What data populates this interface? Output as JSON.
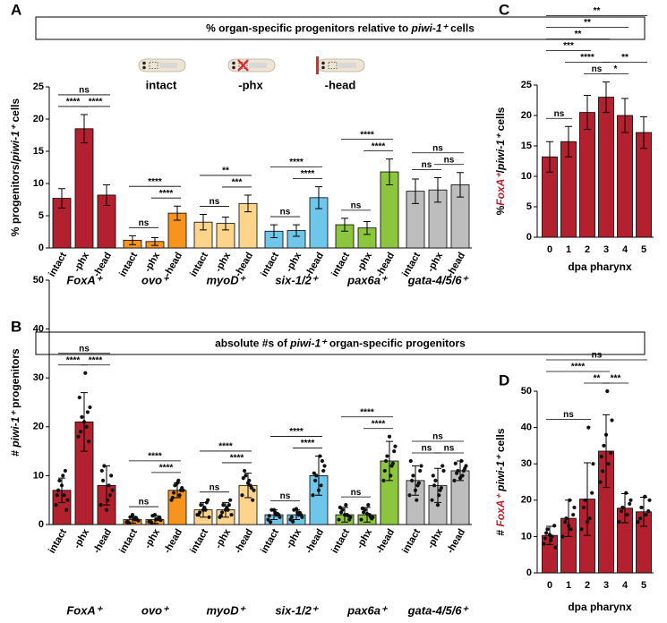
{
  "chart_data": [
    {
      "type": "bar",
      "panel": "A",
      "title": [
        "% organ-specific progenitors relative to ",
        "piwi-1⁺",
        " cells"
      ],
      "legend": [
        {
          "label": "intact",
          "color": "#000000"
        },
        {
          "label": "-phx",
          "color": "#e8242b"
        },
        {
          "label": "-head",
          "color": "#e8242b"
        }
      ],
      "y_label": [
        "% progenitors/",
        "piwi-1⁺",
        " cells"
      ],
      "categories": [
        "intact",
        "-phx",
        "-head"
      ],
      "ylim": [
        0,
        25
      ],
      "yticks": [
        0,
        5,
        10,
        15,
        20,
        25
      ],
      "groups": [
        {
          "name": "FoxA⁺",
          "color": "#b3202e",
          "values": [
            7.7,
            18.5,
            8.2
          ],
          "errors": [
            1.5,
            2.2,
            1.6
          ],
          "significance": [
            {
              "pair": [
                0,
                2
              ],
              "label": "ns"
            },
            {
              "pair": [
                0,
                1
              ],
              "label": "****"
            },
            {
              "pair": [
                1,
                2
              ],
              "label": "****"
            }
          ]
        },
        {
          "name": "ovo⁺",
          "color": "#f7941d",
          "values": [
            1.2,
            1.0,
            5.4
          ],
          "errors": [
            0.7,
            0.6,
            1.1
          ],
          "significance": [
            {
              "pair": [
                0,
                2
              ],
              "label": "****"
            },
            {
              "pair": [
                1,
                2
              ],
              "label": "****"
            },
            {
              "pair": [
                0,
                1
              ],
              "label": "ns"
            }
          ]
        },
        {
          "name": "myoD⁺",
          "color": "#fdd48a",
          "values": [
            4.0,
            3.8,
            6.9
          ],
          "errors": [
            1.2,
            1.0,
            1.3
          ],
          "significance": [
            {
              "pair": [
                0,
                2
              ],
              "label": "**"
            },
            {
              "pair": [
                1,
                2
              ],
              "label": "***"
            },
            {
              "pair": [
                0,
                1
              ],
              "label": "ns"
            }
          ]
        },
        {
          "name": "six-1/2⁺",
          "color": "#6ec6ea",
          "values": [
            2.6,
            2.7,
            7.8
          ],
          "errors": [
            1.0,
            0.9,
            1.7
          ],
          "significance": [
            {
              "pair": [
                0,
                2
              ],
              "label": "****"
            },
            {
              "pair": [
                1,
                2
              ],
              "label": "****"
            },
            {
              "pair": [
                0,
                1
              ],
              "label": "ns"
            }
          ]
        },
        {
          "name": "pax6a⁺",
          "color": "#8cc63f",
          "values": [
            3.6,
            3.1,
            11.8
          ],
          "errors": [
            1.0,
            1.0,
            2.0
          ],
          "significance": [
            {
              "pair": [
                0,
                2
              ],
              "label": "****"
            },
            {
              "pair": [
                1,
                2
              ],
              "label": "****"
            },
            {
              "pair": [
                0,
                1
              ],
              "label": "ns"
            }
          ]
        },
        {
          "name": "gata-4/5/6⁺",
          "color": "#bdbdbd",
          "values": [
            8.8,
            9.0,
            9.8
          ],
          "errors": [
            1.9,
            1.9,
            1.9
          ],
          "significance": [
            {
              "pair": [
                0,
                2
              ],
              "label": "ns"
            },
            {
              "pair": [
                0,
                1
              ],
              "label": "ns"
            },
            {
              "pair": [
                1,
                2
              ],
              "label": "ns"
            }
          ]
        }
      ]
    },
    {
      "type": "bar",
      "panel": "B",
      "title": [
        "absolute #s of ",
        "piwi-1⁺",
        " organ-specific progenitors"
      ],
      "y_label": [
        "# ",
        "piwi-1⁺",
        " progenitors"
      ],
      "categories": [
        "intact",
        "-phx",
        "-head"
      ],
      "ylim": [
        0,
        50
      ],
      "yticks": [
        0,
        10,
        20,
        30,
        40,
        50
      ],
      "groups": [
        {
          "name": "FoxA⁺",
          "color": "#b3202e",
          "values": [
            7,
            21,
            8
          ],
          "errors": [
            2.5,
            6,
            4
          ],
          "points": [
            [
              4,
              6,
              9,
              5,
              10,
              7,
              3,
              8,
              6,
              11
            ],
            [
              18,
              20,
              22,
              24,
              31,
              19,
              17,
              21,
              26,
              23
            ],
            [
              4,
              8,
              12,
              7,
              5,
              9,
              10,
              3,
              11,
              6
            ]
          ],
          "significance": [
            {
              "pair": [
                0,
                2
              ],
              "label": "ns"
            },
            {
              "pair": [
                0,
                1
              ],
              "label": "****"
            },
            {
              "pair": [
                1,
                2
              ],
              "label": "****"
            }
          ]
        },
        {
          "name": "ovo⁺",
          "color": "#f7941d",
          "values": [
            1,
            1,
            7
          ],
          "errors": [
            0.7,
            0.8,
            1.5
          ],
          "points": [
            [
              0.5,
              1,
              1.5,
              0.8,
              1.2,
              0.3,
              1,
              2,
              0.6,
              1.4
            ],
            [
              0.6,
              1.2,
              1.8,
              0.9,
              1,
              0.4,
              1.5,
              2,
              0.7,
              1.1
            ],
            [
              5,
              6,
              8,
              7,
              9,
              6.5,
              7.5,
              8.5,
              5.5,
              7
            ]
          ],
          "significance": [
            {
              "pair": [
                0,
                2
              ],
              "label": "****"
            },
            {
              "pair": [
                1,
                2
              ],
              "label": "****"
            },
            {
              "pair": [
                0,
                1
              ],
              "label": "ns"
            }
          ]
        },
        {
          "name": "myoD⁺",
          "color": "#fdd48a",
          "values": [
            3,
            3,
            8
          ],
          "errors": [
            1.5,
            1.5,
            2.5
          ],
          "points": [
            [
              2,
              3,
              4,
              1.5,
              3.5,
              2.5,
              5,
              3,
              2,
              4.5
            ],
            [
              1.5,
              3,
              4,
              2,
              3.5,
              2.5,
              5,
              3,
              1.8,
              4
            ],
            [
              6,
              8,
              10,
              7,
              9,
              11,
              5,
              8.5,
              9.5,
              7.5
            ]
          ],
          "significance": [
            {
              "pair": [
                0,
                2
              ],
              "label": "****"
            },
            {
              "pair": [
                1,
                2
              ],
              "label": "****"
            },
            {
              "pair": [
                0,
                1
              ],
              "label": "ns"
            }
          ]
        },
        {
          "name": "six-1/2⁺",
          "color": "#6ec6ea",
          "values": [
            2,
            2,
            10
          ],
          "errors": [
            1,
            1,
            4
          ],
          "points": [
            [
              1,
              2,
              3,
              1.5,
              2.5,
              0.5,
              2,
              3,
              1.8,
              2.2
            ],
            [
              1,
              2,
              3,
              1.5,
              2.5,
              0.6,
              2,
              3.2,
              1.5,
              2.4
            ],
            [
              6,
              8,
              10,
              12,
              14,
              9,
              11,
              7,
              10.5,
              13
            ]
          ],
          "significance": [
            {
              "pair": [
                0,
                2
              ],
              "label": "****"
            },
            {
              "pair": [
                1,
                2
              ],
              "label": "****"
            },
            {
              "pair": [
                0,
                1
              ],
              "label": "ns"
            }
          ]
        },
        {
          "name": "pax6a⁺",
          "color": "#8cc63f",
          "values": [
            2,
            2,
            13
          ],
          "errors": [
            1.5,
            1.5,
            4
          ],
          "points": [
            [
              1,
              2,
              3,
              1.5,
              4,
              2.5,
              1,
              2,
              3.5,
              1.8
            ],
            [
              1,
              2,
              3,
              1.5,
              4,
              2.5,
              1.2,
              2.2,
              3.3,
              1.6
            ],
            [
              9,
              12,
              14,
              16,
              10,
              13,
              15,
              18,
              11,
              12.5
            ]
          ],
          "significance": [
            {
              "pair": [
                0,
                2
              ],
              "label": "****"
            },
            {
              "pair": [
                1,
                2
              ],
              "label": "****"
            },
            {
              "pair": [
                0,
                1
              ],
              "label": "ns"
            }
          ]
        },
        {
          "name": "gata-4/5/6⁺",
          "color": "#bdbdbd",
          "values": [
            9,
            8,
            11
          ],
          "errors": [
            3,
            3.5,
            2
          ],
          "points": [
            [
              6,
              8,
              10,
              12,
              5,
              9,
              11,
              7,
              13,
              8.5
            ],
            [
              5,
              7,
              9,
              11,
              6,
              8,
              12,
              4,
              10,
              7.5
            ],
            [
              9,
              10,
              11,
              12,
              13,
              10.5,
              11.5,
              9.5,
              12.5,
              11
            ]
          ],
          "significance": [
            {
              "pair": [
                0,
                2
              ],
              "label": "ns"
            },
            {
              "pair": [
                0,
                1
              ],
              "label": "ns"
            },
            {
              "pair": [
                1,
                2
              ],
              "label": "ns"
            }
          ]
        }
      ]
    },
    {
      "type": "bar",
      "panel": "C",
      "y_label": [
        "%",
        "FoxA⁺",
        "/",
        "piwi-1⁺",
        " cells"
      ],
      "x_label": "dpa pharynx",
      "categories": [
        "0",
        "1",
        "2",
        "3",
        "4",
        "5"
      ],
      "color": "#b3202e",
      "values": [
        13.2,
        15.7,
        20.5,
        23.0,
        20.0,
        17.2
      ],
      "errors": [
        2.5,
        2.5,
        2.8,
        2.5,
        2.8,
        2.6
      ],
      "ylim": [
        0,
        25
      ],
      "yticks": [
        0,
        5,
        10,
        15,
        20,
        25
      ],
      "significance": [
        {
          "pair": [
            0,
            5
          ],
          "label": "**"
        },
        {
          "pair": [
            0,
            4
          ],
          "label": "**"
        },
        {
          "pair": [
            1,
            3
          ],
          "label": "****"
        },
        {
          "pair": [
            3,
            5
          ],
          "label": "**"
        },
        {
          "pair": [
            2,
            3
          ],
          "label": "ns"
        },
        {
          "pair": [
            3,
            4
          ],
          "label": "*"
        },
        {
          "pair": [
            0,
            2
          ],
          "label": "***"
        },
        {
          "pair": [
            0,
            1
          ],
          "label": "ns"
        },
        {
          "pair": [
            0,
            3
          ],
          "label": "**"
        }
      ]
    },
    {
      "type": "bar",
      "panel": "D",
      "y_label": [
        "# ",
        "FoxA⁺",
        " ",
        "piwi-1⁺",
        " cells"
      ],
      "x_label": "dpa pharynx",
      "categories": [
        "0",
        "1",
        "2",
        "3",
        "4",
        "5"
      ],
      "color": "#b3202e",
      "values": [
        10.3,
        15,
        20.3,
        33.5,
        17.8,
        16.8
      ],
      "errors": [
        2.5,
        5,
        10,
        10,
        4,
        4
      ],
      "points": [
        [
          8,
          10,
          12,
          7,
          9,
          11,
          13,
          10.5,
          9.5
        ],
        [
          10,
          12,
          15,
          18,
          20,
          14,
          16,
          13
        ],
        [
          12,
          15,
          20,
          30,
          40,
          18,
          22,
          14
        ],
        [
          25,
          30,
          35,
          42,
          50,
          28,
          33,
          38,
          32
        ],
        [
          14,
          16,
          18,
          20,
          22,
          17,
          19
        ],
        [
          14,
          16,
          18,
          20,
          21,
          15,
          17
        ]
      ],
      "ylim": [
        0,
        50
      ],
      "yticks": [
        0,
        10,
        20,
        30,
        40,
        50
      ],
      "significance": [
        {
          "pair": [
            0,
            5
          ],
          "label": "ns"
        },
        {
          "pair": [
            0,
            3
          ],
          "label": "****"
        },
        {
          "pair": [
            2,
            3
          ],
          "label": "**"
        },
        {
          "pair": [
            3,
            4
          ],
          "label": "***"
        },
        {
          "pair": [
            0,
            2
          ],
          "label": "ns"
        }
      ]
    }
  ]
}
